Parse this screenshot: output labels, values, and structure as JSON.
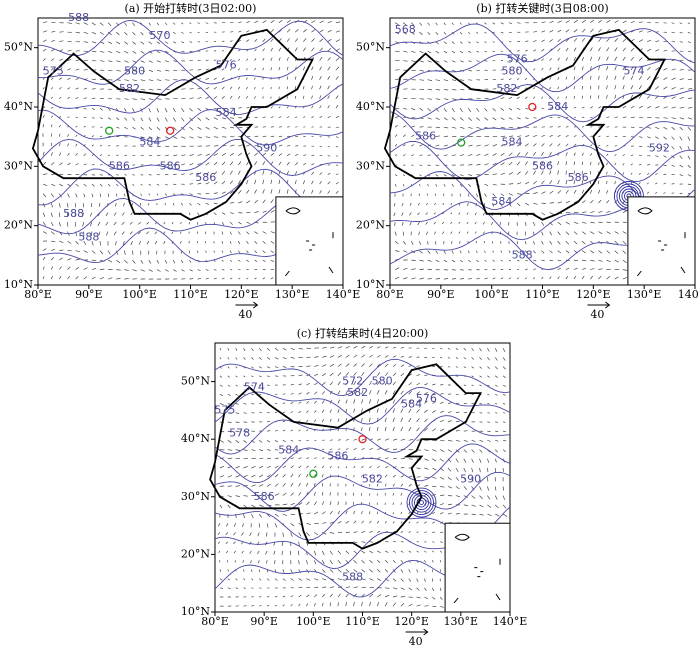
{
  "panels": [
    {
      "title": "(a) 开始打转时(3日02:00)",
      "x_labels": [
        "80°E",
        "90°E",
        "100°E",
        "110°E",
        "120°E",
        "130°E",
        "140°E"
      ],
      "y_labels": [
        "10°N",
        "20°N",
        "30°N",
        "40°N",
        "50°N"
      ],
      "contour_labels": [
        "588",
        "570",
        "575",
        "580",
        "582",
        "576",
        "584",
        "584",
        "586",
        "586",
        "588",
        "590",
        "586",
        "588"
      ],
      "vector_label": "40"
    },
    {
      "title": "(b) 打转关键时(3日08:00)",
      "x_labels": [
        "80°E",
        "90°E",
        "100°E",
        "110°E",
        "120°E",
        "130°E",
        "140°E"
      ],
      "y_labels": [
        "10°N",
        "20°N",
        "30°N",
        "40°N",
        "50°N"
      ],
      "contour_labels": [
        "568",
        "576",
        "574",
        "580",
        "582",
        "584",
        "586",
        "584",
        "592",
        "586",
        "586",
        "584",
        "588"
      ],
      "vector_label": "40"
    },
    {
      "title": "(c) 打转结束时(4日20:00)",
      "x_labels": [
        "80°E",
        "90°E",
        "100°E",
        "110°E",
        "120°E",
        "130°E",
        "140°E"
      ],
      "y_labels": [
        "10°N",
        "20°N",
        "30°N",
        "40°N",
        "50°N"
      ],
      "contour_labels": [
        "575",
        "574",
        "572",
        "580",
        "578",
        "582",
        "576",
        "584",
        "584",
        "586",
        "586",
        "582",
        "588",
        "590"
      ],
      "vector_label": "40"
    }
  ]
}
